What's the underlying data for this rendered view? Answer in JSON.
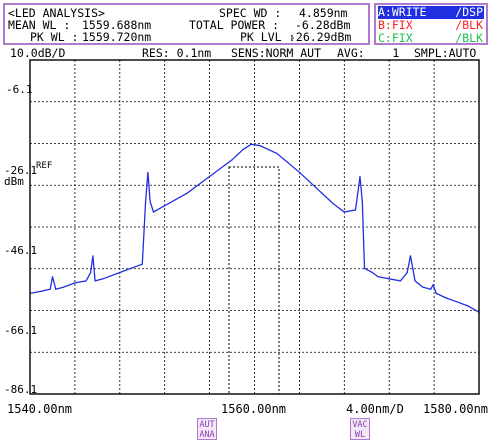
{
  "analysis": {
    "title": "<LED ANALYSIS>",
    "mean_wl_label": "MEAN WL :",
    "mean_wl_value": "1559.688nm",
    "pk_wl_label": "PK WL :",
    "pk_wl_value": "1559.720nm",
    "spec_wd_label": "SPEC WD :",
    "spec_wd_value": "4.859nm",
    "total_power_label": "TOTAL POWER :",
    "total_power_value": "-6.28dBm",
    "pk_lvl_label": "PK LVL :",
    "pk_lvl_value": "-26.29dBm"
  },
  "traces": [
    {
      "id": "A",
      "mode": "A:WRITE",
      "display": "/DSP",
      "color": "#2030e0"
    },
    {
      "id": "B",
      "mode": "B:FIX",
      "display": "/BLK",
      "color": "#ff2020"
    },
    {
      "id": "C",
      "mode": "C:FIX",
      "display": "/BLK",
      "color": "#20c050"
    }
  ],
  "settings": {
    "scale": "10.0dB/D",
    "res": "RES: 0.1nm",
    "sens": "SENS:NORM AUT",
    "avg": "AVG:    1",
    "smpl": "SMPL:AUTO"
  },
  "axes": {
    "y_ticks": [
      "-6.1",
      "-26.1",
      "-46.1",
      "-66.1",
      "-86.1"
    ],
    "ref_label": "REF",
    "y_unit": "dBm",
    "x_start": "1540.00nm",
    "x_center": "1560.00nm",
    "x_span": "4.00nm/D",
    "x_end": "1580.00nm"
  },
  "buttons": {
    "aut_ana": "AUT ANA",
    "vac_wl": "VAC WL"
  },
  "chart_data": {
    "type": "line",
    "x_unit": "nm",
    "y_unit": "dBm",
    "xlim": [
      1540,
      1580
    ],
    "ylim": [
      -86.1,
      -6.1
    ],
    "grid": true,
    "series": [
      {
        "color": "#2030e0",
        "x": [
          1540,
          1541,
          1541.8,
          1542,
          1542.3,
          1543,
          1544,
          1545,
          1545.4,
          1545.6,
          1545.8,
          1546.5,
          1547,
          1548,
          1549,
          1550,
          1550.3,
          1550.5,
          1550.7,
          1551,
          1552,
          1554,
          1556,
          1558,
          1559,
          1559.7,
          1560.5,
          1562,
          1564,
          1566,
          1567,
          1568,
          1569,
          1569.4,
          1569.6,
          1569.8,
          1570.5,
          1571,
          1572,
          1573,
          1573.6,
          1573.9,
          1574.3,
          1575,
          1575.7,
          1575.9,
          1576.2,
          1577,
          1578,
          1579,
          1580
        ],
        "y": [
          -62,
          -61.5,
          -61,
          -58,
          -61,
          -60.5,
          -59.5,
          -59,
          -57,
          -53,
          -59,
          -58.5,
          -58,
          -57,
          -56,
          -55,
          -40,
          -33,
          -40,
          -42.5,
          -41,
          -38,
          -34,
          -30,
          -27.5,
          -26.3,
          -26.6,
          -28.5,
          -33,
          -38,
          -40.5,
          -42.5,
          -42,
          -34,
          -40,
          -56,
          -57,
          -58,
          -58.5,
          -59,
          -57,
          -53,
          -59,
          -60.5,
          -61,
          -60,
          -62,
          -63,
          -64,
          -65,
          -66.5
        ]
      }
    ]
  }
}
